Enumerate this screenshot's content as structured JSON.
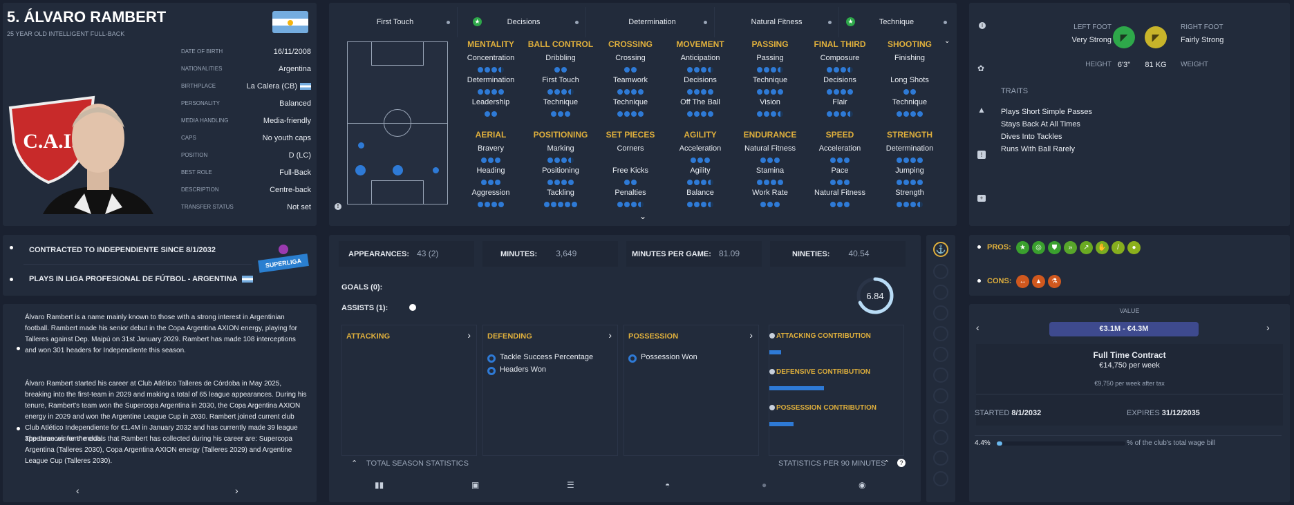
{
  "player": {
    "name": "5. ÁLVARO RAMBERT",
    "subtitle": "25 YEAR OLD INTELLIGENT FULL-BACK"
  },
  "info": [
    {
      "label": "DATE OF BIRTH",
      "value": "16/11/2008"
    },
    {
      "label": "NATIONALITIES",
      "value": "Argentina"
    },
    {
      "label": "BIRTHPLACE",
      "value": "La Calera (CB)"
    },
    {
      "label": "PERSONALITY",
      "value": "Balanced"
    },
    {
      "label": "MEDIA HANDLING",
      "value": "Media-friendly"
    },
    {
      "label": "CAPS",
      "value": "No youth caps"
    },
    {
      "label": "POSITION",
      "value": "D (LC)"
    },
    {
      "label": "BEST ROLE",
      "value": "Full-Back"
    },
    {
      "label": "DESCRIPTION",
      "value": "Centre-back"
    },
    {
      "label": "TRANSFER STATUS",
      "value": "Not set"
    }
  ],
  "club_logo_text": "C.A.I.",
  "tabs": [
    "First Touch",
    "Decisions",
    "Determination",
    "Natural Fitness",
    "Technique"
  ],
  "attr_top": [
    {
      "head": "MENTALITY",
      "items": [
        "Concentration",
        "Determination",
        "Leadership"
      ]
    },
    {
      "head": "BALL CONTROL",
      "items": [
        "Dribbling",
        "First Touch",
        "Technique"
      ]
    },
    {
      "head": "CROSSING",
      "items": [
        "Crossing",
        "Teamwork",
        "Technique"
      ]
    },
    {
      "head": "MOVEMENT",
      "items": [
        "Anticipation",
        "Decisions",
        "Off The Ball"
      ]
    },
    {
      "head": "PASSING",
      "items": [
        "Passing",
        "Technique",
        "Vision"
      ]
    },
    {
      "head": "FINAL THIRD",
      "items": [
        "Composure",
        "Decisions",
        "Flair"
      ]
    },
    {
      "head": "SHOOTING",
      "items": [
        "Finishing",
        "Long Shots",
        "Technique"
      ]
    }
  ],
  "attr_bottom": [
    {
      "head": "AERIAL",
      "items": [
        "Bravery",
        "Heading",
        "Aggression"
      ]
    },
    {
      "head": "POSITIONING",
      "items": [
        "Marking",
        "Positioning",
        "Tackling"
      ]
    },
    {
      "head": "SET PIECES",
      "items": [
        "Corners",
        "Free Kicks",
        "Penalties"
      ]
    },
    {
      "head": "AGILITY",
      "items": [
        "Acceleration",
        "Agility",
        "Balance"
      ]
    },
    {
      "head": "ENDURANCE",
      "items": [
        "Natural Fitness",
        "Stamina",
        "Work Rate"
      ]
    },
    {
      "head": "SPEED",
      "items": [
        "Acceleration",
        "Pace",
        "Natural Fitness"
      ]
    },
    {
      "head": "STRENGTH",
      "items": [
        "Determination",
        "Jumping",
        "Strength"
      ]
    }
  ],
  "physical": {
    "left_foot_label": "LEFT FOOT",
    "left_foot": "Very Strong",
    "right_foot_label": "RIGHT FOOT",
    "right_foot": "Fairly Strong",
    "height_label": "HEIGHT",
    "height": "6'3\"",
    "weight": "81 KG",
    "weight_label": "WEIGHT"
  },
  "traits_label": "TRAITS",
  "traits": [
    "Plays Short Simple Passes",
    "Stays Back At All Times",
    "Dives Into Tackles",
    "Runs With Ball Rarely"
  ],
  "contract": {
    "line1": "CONTRACTED TO INDEPENDIENTE SINCE 8/1/2032",
    "line2": "PLAYS IN LIGA PROFESIONAL DE FÚTBOL - ARGENTINA",
    "league_logo": "SUPERLIGA"
  },
  "bio": [
    "Álvaro Rambert is a name mainly known to those with a strong interest in Argentinian football. Rambert made his senior debut in the Copa Argentina AXION energy, playing for Talleres against Dep. Maipú on 31st January 2029. Rambert has made 108 interceptions and won 301 headers for Independiente this season.",
    "Álvaro Rambert started his career at Club Atlético Talleres de Córdoba in May 2025, breaking into the first-team in 2029 and making a total of 65 league appearances. During his tenure, Rambert's team won the Supercopa Argentina in 2030, the Copa Argentina AXION energy in 2029 and won the Argentine League Cup in 2030. Rambert joined current club Club Atlético Independiente for €1.4M in January 2032 and has currently made 39 league appearances for the club.",
    "The three winners' medals that Rambert has collected during his career are: Supercopa Argentina (Talleres 2030), Copa Argentina AXION energy (Talleres 2029) and Argentine League Cup (Talleres 2030)."
  ],
  "stats": [
    {
      "label": "APPEARANCES:",
      "value": "43 (2)"
    },
    {
      "label": "MINUTES:",
      "value": "3,649"
    },
    {
      "label": "MINUTES PER GAME:",
      "value": "81.09"
    },
    {
      "label": "NINETIES:",
      "value": "40.54"
    }
  ],
  "goals": "GOALS (0):",
  "assists": "ASSISTS (1):",
  "rating": "6.84",
  "rating_fraction": 0.68,
  "sections": {
    "attacking": "ATTACKING",
    "defending": "DEFENDING",
    "possession": "POSSESSION"
  },
  "defending_items": [
    "Tackle Success Percentage",
    "Headers Won"
  ],
  "possession_items": [
    "Possession Won"
  ],
  "contributions": [
    {
      "label": "ATTACKING CONTRIBUTION",
      "fraction": 0.15
    },
    {
      "label": "DEFENSIVE CONTRIBUTION",
      "fraction": 0.72
    },
    {
      "label": "POSSESSION CONTRIBUTION",
      "fraction": 0.32
    }
  ],
  "footer": {
    "total": "TOTAL SEASON STATISTICS",
    "per90": "STATISTICS PER 90 MINUTES"
  },
  "pros_label": "PROS:",
  "cons_label": "CONS:",
  "value": {
    "label": "VALUE",
    "range": "€3.1M - €4.3M",
    "contract_type": "Full Time Contract",
    "wage": "€14,750 per week",
    "after_tax": "€9,750 per week after tax",
    "started_label": "STARTED",
    "started": "8/1/2032",
    "expires_label": "EXPIRES",
    "expires": "31/12/2035",
    "wage_pct": "4.4%",
    "wage_pct_fraction": 0.044,
    "wage_bill_text": "% of the club's total wage bill"
  },
  "colors": {
    "accent": "#e0b03c",
    "blue": "#2e7ad6",
    "panel": "#222b3b"
  }
}
